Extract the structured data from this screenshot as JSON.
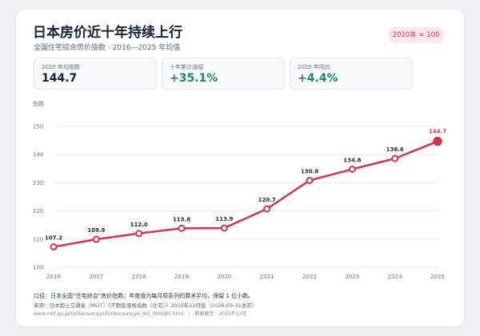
{
  "header": {
    "title": "日本房价近十年持续上行",
    "subtitle": "全国住宅综合房价指数 · 2016—2025 年均值",
    "badge": "2010年 = 100"
  },
  "kpis": [
    {
      "label": "2025 年均指数",
      "value": "144.7"
    },
    {
      "label": "十年累计涨幅",
      "value": "+35.1%"
    },
    {
      "label": "2025 年同比",
      "value": "+4.4%"
    }
  ],
  "colors": {
    "line": "#d4354c",
    "accent_green": "#1e8a5a",
    "badge_bg": "#fbe6ea"
  },
  "chart_data": {
    "type": "line",
    "ylabel": "指数",
    "x": [
      "2016",
      "2017",
      "2018",
      "2019",
      "2020",
      "2021",
      "2022",
      "2023",
      "2024",
      "2025"
    ],
    "series": [
      {
        "values": [
          107.2,
          109.9,
          112.0,
          113.8,
          113.9,
          120.7,
          130.8,
          134.8,
          138.6,
          144.7
        ]
      }
    ],
    "data_labels": [
      "107.2",
      "109.9",
      "112.0",
      "113.8",
      "113.9",
      "120.7",
      "130.8",
      "134.8",
      "138.6",
      "144.7"
    ],
    "ylim": [
      100,
      150
    ],
    "yticks": [
      "100",
      "110",
      "120",
      "130",
      "140",
      "150"
    ],
    "grid": true,
    "highlight_last": true
  },
  "footer": {
    "note": "口径：日本全国“住宅综合”房价指数；年度值为每月原系列的算术平均，保留 1 位小数。",
    "source": "来源：日本国土交通省（MLIT）《不動産価格指数（住宅）》2025年12月版（2026-03-31发布）",
    "url": "www.mlit.go.jp/totikensangyo/totikensangyo_tk5_000085.html",
    "cutoff": "数据截至：2025年12月"
  }
}
